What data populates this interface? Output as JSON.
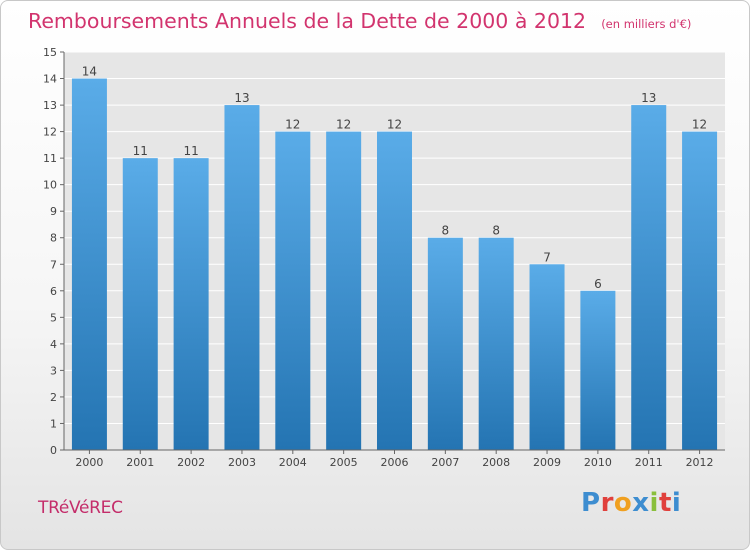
{
  "header": {
    "title": "Remboursements Annuels de la Dette de 2000 à 2012",
    "subtitle": "(en milliers d'€)"
  },
  "footer": {
    "place": "TRéVéREC",
    "logo": "Proxiti"
  },
  "colors": {
    "title": "#d2346e",
    "bar_light": "#5aace8",
    "bar_dark": "#2474b2",
    "logo_letters": [
      "#3d8dd0",
      "#e0403c",
      "#f0a020",
      "#3d8dd0",
      "#8abf3c",
      "#e0403c",
      "#3d8dd0"
    ]
  },
  "chart_data": {
    "type": "bar",
    "title": "Remboursements Annuels de la Dette de 2000 à 2012",
    "subtitle": "(en milliers d'€)",
    "categories": [
      "2000",
      "2001",
      "2002",
      "2003",
      "2004",
      "2005",
      "2006",
      "2007",
      "2008",
      "2009",
      "2010",
      "2011",
      "2012"
    ],
    "values": [
      14,
      11,
      11,
      13,
      12,
      12,
      12,
      8,
      8,
      7,
      6,
      13,
      12
    ],
    "data_labels": [
      "14",
      "11",
      "11",
      "13",
      "12",
      "12",
      "12",
      "8",
      "8",
      "7",
      "6",
      "13",
      "12"
    ],
    "yticks": [
      "0",
      "1",
      "2",
      "3",
      "4",
      "5",
      "6",
      "7",
      "8",
      "9",
      "10",
      "11",
      "12",
      "13",
      "14",
      "15"
    ],
    "ylim": [
      0,
      15
    ],
    "grid": true,
    "xlabel": "",
    "ylabel": ""
  }
}
